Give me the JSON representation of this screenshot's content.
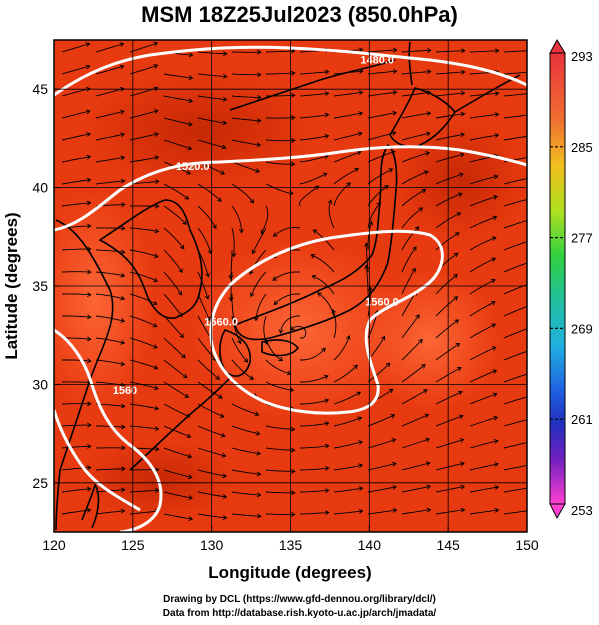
{
  "title": "MSM 18Z25Jul2023 (850.0hPa)",
  "x_axis": {
    "label": "Longitude (degrees)",
    "ticks": [
      "120",
      "125",
      "130",
      "135",
      "140",
      "145",
      "150"
    ],
    "range": [
      120,
      150
    ]
  },
  "y_axis": {
    "label": "Latitude  (degrees)",
    "ticks": [
      "25",
      "30",
      "35",
      "40",
      "45"
    ],
    "range": [
      22.5,
      47.5
    ]
  },
  "colorbar": {
    "ticks": [
      "293",
      "285",
      "277",
      "269",
      "261",
      "253"
    ],
    "colors": [
      "#e8323c",
      "#f07030",
      "#f0b020",
      "#c8e020",
      "#40d040",
      "#20c080",
      "#20c0d0",
      "#2080e0",
      "#2040d0",
      "#6020c0",
      "#c020c0",
      "#ff40c0"
    ]
  },
  "contour_labels": [
    {
      "text": "1480.0",
      "lon": 140.5,
      "lat": 46.3
    },
    {
      "text": "1520.0",
      "lon": 128.8,
      "lat": 40.9
    },
    {
      "text": "1560.0",
      "lon": 130.6,
      "lat": 33.0
    },
    {
      "text": "1560.0",
      "lon": 140.8,
      "lat": 34.0
    },
    {
      "text": "1560",
      "lon": 124.5,
      "lat": 29.5
    }
  ],
  "field_colors": {
    "base": "#e83a10",
    "warm": "#ff5a2a",
    "cool": "#c82808",
    "contour": "#ffffff",
    "coast": "#000000",
    "stream": "#000000"
  },
  "credits": {
    "line1": "Drawing by DCL (https://www.gfd-dennou.org/library/dcl/)",
    "line2": "Data from http://database.rish.kyoto-u.ac.jp/arch/jmadata/"
  }
}
